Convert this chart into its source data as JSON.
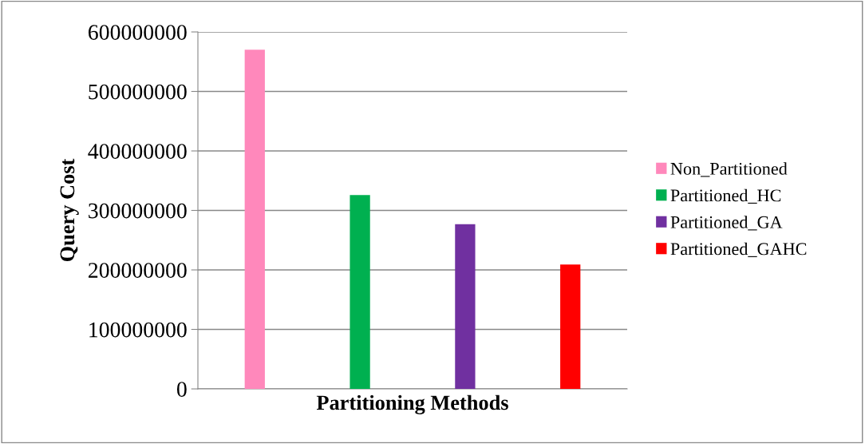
{
  "chart_data": {
    "type": "bar",
    "xlabel": "Partitioning Methods",
    "ylabel": "Query Cost",
    "categories": [
      null
    ],
    "series": [
      {
        "name": "Non_Partitioned",
        "color": "#ff88bb",
        "values": [
          570000000
        ]
      },
      {
        "name": "Partitioned_HC",
        "color": "#00b050",
        "values": [
          326000000
        ]
      },
      {
        "name": "Partitioned_GA",
        "color": "#7030a0",
        "values": [
          277000000
        ]
      },
      {
        "name": "Partitioned_GAHC",
        "color": "#ff0000",
        "values": [
          209000000
        ]
      }
    ],
    "ylim": [
      0,
      600000000
    ],
    "yticks": [
      0,
      100000000,
      200000000,
      300000000,
      400000000,
      500000000,
      600000000
    ],
    "grid": "y",
    "legend": "right"
  }
}
